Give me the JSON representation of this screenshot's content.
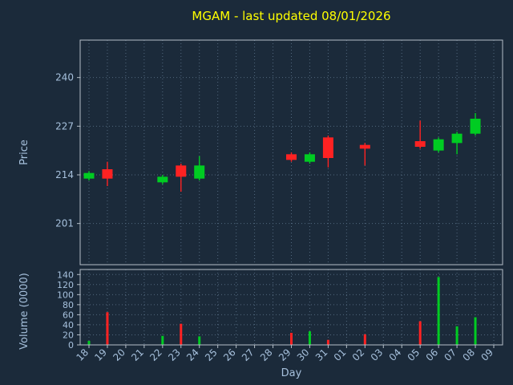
{
  "title": "MGAM - last updated 08/01/2026",
  "colors": {
    "background": "#1b2a3a",
    "title": "#ffff00",
    "label": "#a6c0dc",
    "tick": "#a6c0dc",
    "grid": "#52687e",
    "spine": "#b4bec8",
    "up": "#00cc22",
    "down": "#ff2222"
  },
  "chart_data": [
    {
      "type": "candlestick",
      "title": "MGAM - last updated 08/01/2026",
      "ylabel": "Price",
      "xlabel": "Day",
      "yticks": [
        201,
        214,
        227,
        240
      ],
      "ylim": [
        190,
        250
      ],
      "grid": "dotted",
      "categories": [
        "18",
        "19",
        "20",
        "21",
        "22",
        "23",
        "24",
        "25",
        "26",
        "27",
        "28",
        "29",
        "30",
        "31",
        "01",
        "02",
        "03",
        "04",
        "05",
        "06",
        "07",
        "08",
        "09"
      ],
      "candles": [
        {
          "open": 213,
          "close": 214.5,
          "high": 215,
          "low": 212.5
        },
        {
          "open": 215.5,
          "close": 213,
          "high": 217.5,
          "low": 211
        },
        null,
        null,
        {
          "open": 212,
          "close": 213.5,
          "high": 214,
          "low": 211.5
        },
        {
          "open": 216.5,
          "close": 213.5,
          "high": 217,
          "low": 209.5
        },
        {
          "open": 213,
          "close": 216.5,
          "high": 219,
          "low": 212.5
        },
        null,
        null,
        null,
        null,
        {
          "open": 219.5,
          "close": 218,
          "high": 220,
          "low": 217.5
        },
        {
          "open": 217.5,
          "close": 219.5,
          "high": 220,
          "low": 217
        },
        {
          "open": 224,
          "close": 218.5,
          "high": 224.5,
          "low": 216
        },
        null,
        {
          "open": 222,
          "close": 221,
          "high": 222.5,
          "low": 216.5
        },
        null,
        null,
        {
          "open": 223,
          "close": 221.5,
          "high": 228.5,
          "low": 221
        },
        {
          "open": 220.5,
          "close": 223.5,
          "high": 224,
          "low": 220
        },
        {
          "open": 222.5,
          "close": 225,
          "high": 225.5,
          "low": 219.5
        },
        {
          "open": 225,
          "close": 229,
          "high": 230.5,
          "low": 224.5
        },
        null
      ]
    },
    {
      "type": "bar",
      "ylabel": "Volume (0000)",
      "yticks": [
        0,
        20,
        40,
        60,
        80,
        100,
        120,
        140
      ],
      "ylim": [
        0,
        150
      ],
      "grid": "dotted",
      "categories": [
        "18",
        "19",
        "20",
        "21",
        "22",
        "23",
        "24",
        "25",
        "26",
        "27",
        "28",
        "29",
        "30",
        "31",
        "01",
        "02",
        "03",
        "04",
        "05",
        "06",
        "07",
        "08",
        "09"
      ],
      "values": [
        8,
        65,
        0,
        0,
        18,
        42,
        17,
        0,
        0,
        0,
        0,
        24,
        27,
        10,
        0,
        21,
        0,
        0,
        47,
        135,
        37,
        55,
        0
      ]
    }
  ]
}
